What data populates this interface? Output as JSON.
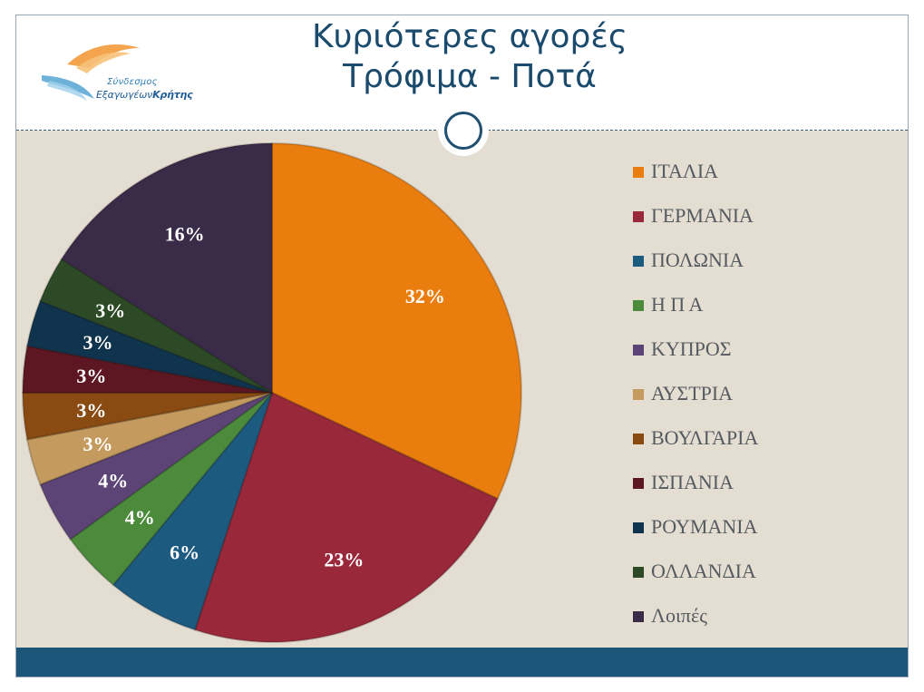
{
  "slide": {
    "title_line1": "Κυριότερες αγορές",
    "title_line2": "Τρόφιμα - Ποτά",
    "logo_line1": "Σύνδεσμος",
    "logo_line2a": "Εξαγωγέων",
    "logo_line2b": "Κρήτης"
  },
  "chart_data": {
    "type": "pie",
    "categories": [
      "ΙΤΑΛΙΑ",
      "ΓΕΡΜΑΝΙΑ",
      "ΠΟΛΩΝΙΑ",
      "Η Π Α",
      "ΚΥΠΡΟΣ",
      "ΑΥΣΤΡΙΑ",
      "ΒΟΥΛΓΑΡΙΑ",
      "ΙΣΠΑΝΙΑ",
      "ΡΟΥΜΑΝΙΑ",
      "ΟΛΛΑΝΔΙΑ",
      "Λοιπές"
    ],
    "values": [
      32,
      23,
      6,
      4,
      4,
      3,
      3,
      3,
      3,
      3,
      16
    ],
    "labels": [
      "32%",
      "23%",
      "6%",
      "4%",
      "4%",
      "3%",
      "3%",
      "3%",
      "3%",
      "3%",
      "16%"
    ],
    "colors": [
      "#e97d0e",
      "#98283a",
      "#1d5a80",
      "#4c8a3c",
      "#5d4476",
      "#c49a5e",
      "#8a4b12",
      "#5c1723",
      "#10344d",
      "#2c4a25",
      "#3a2b48"
    ],
    "legend_position": "right",
    "start_angle": "12 o'clock",
    "direction": "clockwise"
  }
}
